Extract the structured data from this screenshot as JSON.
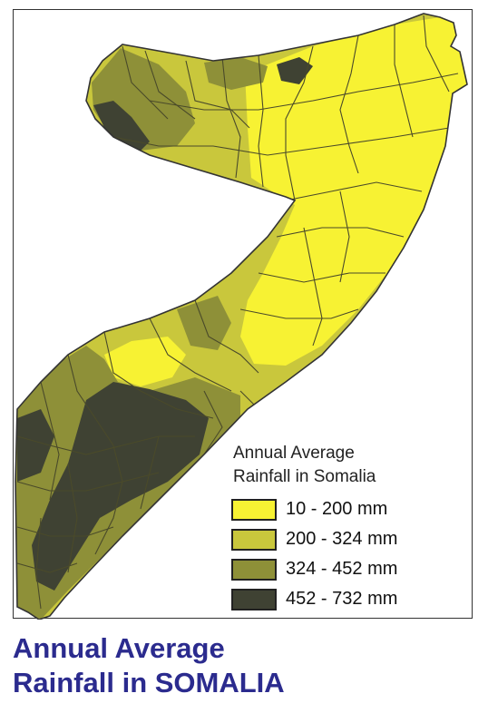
{
  "legend": {
    "title_line1": "Annual Average",
    "title_line2": "Rainfall in Somalia",
    "items": [
      {
        "label": "10 - 200 mm",
        "color": "#f7f233"
      },
      {
        "label": "200 - 324 mm",
        "color": "#c9c73c"
      },
      {
        "label": "324 - 452 mm",
        "color": "#8e9038"
      },
      {
        "label": "452 - 732 mm",
        "color": "#3f4233"
      }
    ]
  },
  "caption": {
    "line1": "Annual Average",
    "line2": "Rainfall in SOMALIA"
  },
  "map": {
    "border_color": "#333333",
    "district_line_color": "#4a4a2a"
  }
}
